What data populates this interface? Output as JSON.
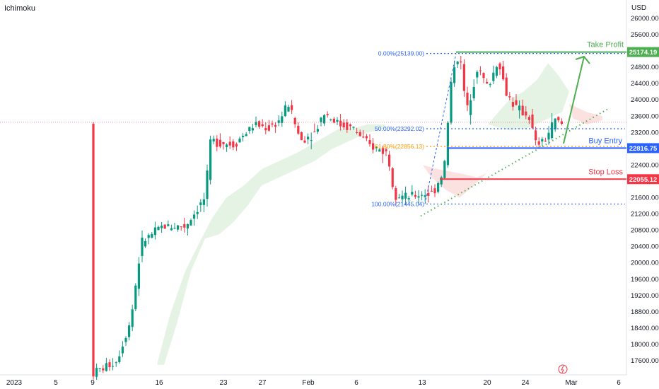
{
  "indicator_label": "Ichimoku",
  "currency": "USD",
  "chart_data": {
    "type": "candlestick",
    "y_axis": {
      "min": 17300,
      "max": 26300,
      "ticks": [
        17600,
        18000,
        18400,
        18800,
        19200,
        19600,
        20000,
        20400,
        20800,
        21200,
        21600,
        22000,
        22400,
        22800,
        23200,
        23600,
        24000,
        24400,
        24800,
        25200,
        25600,
        26000
      ],
      "tick_labels": [
        "17600.00",
        "18000.00",
        "18400.00",
        "18800.00",
        "19200.00",
        "19600.00",
        "20000.00",
        "20400.00",
        "20800.00",
        "21200.00",
        "21600.00",
        "22000.00",
        "22400.00",
        "22800.00",
        "23200.00",
        "23600.00",
        "24000.00",
        "24400.00",
        "24800.00",
        "25200.00",
        "25600.00",
        "26000.00"
      ]
    },
    "x_axis": {
      "labels": [
        "2023",
        "5",
        "9",
        "16",
        "23",
        "27",
        "Feb",
        "6",
        "13",
        "20",
        "24",
        "Mar",
        "6"
      ]
    },
    "fibonacci": [
      {
        "label": "0.00%(25139.00)",
        "price": 25139.0
      },
      {
        "label": "50.00%(23292.02)",
        "price": 23292.02
      },
      {
        "label": "61.80%(22856.13)",
        "price": 22856.13
      },
      {
        "label": "100.00%(21445.04)",
        "price": 21445.04
      }
    ],
    "levels": [
      {
        "name": "Take Profit",
        "value": "25174.19",
        "price": 25174.19,
        "color": "#4caf50"
      },
      {
        "name": "Buy Entry",
        "value": "22816.75",
        "price": 22816.75,
        "color": "#2962ff"
      },
      {
        "name": "Stop Loss",
        "value": "22055.12",
        "price": 22055.12,
        "color": "#f23645"
      }
    ],
    "last_price": 23450,
    "grid": false,
    "colors": {
      "up": "#089981",
      "down": "#f23645",
      "cloud_up": "#cfe9cf",
      "cloud_down": "#f9c9c9",
      "fib": "#2962ff",
      "fib_618": "#ff9800",
      "trend": "#4caf50"
    }
  }
}
